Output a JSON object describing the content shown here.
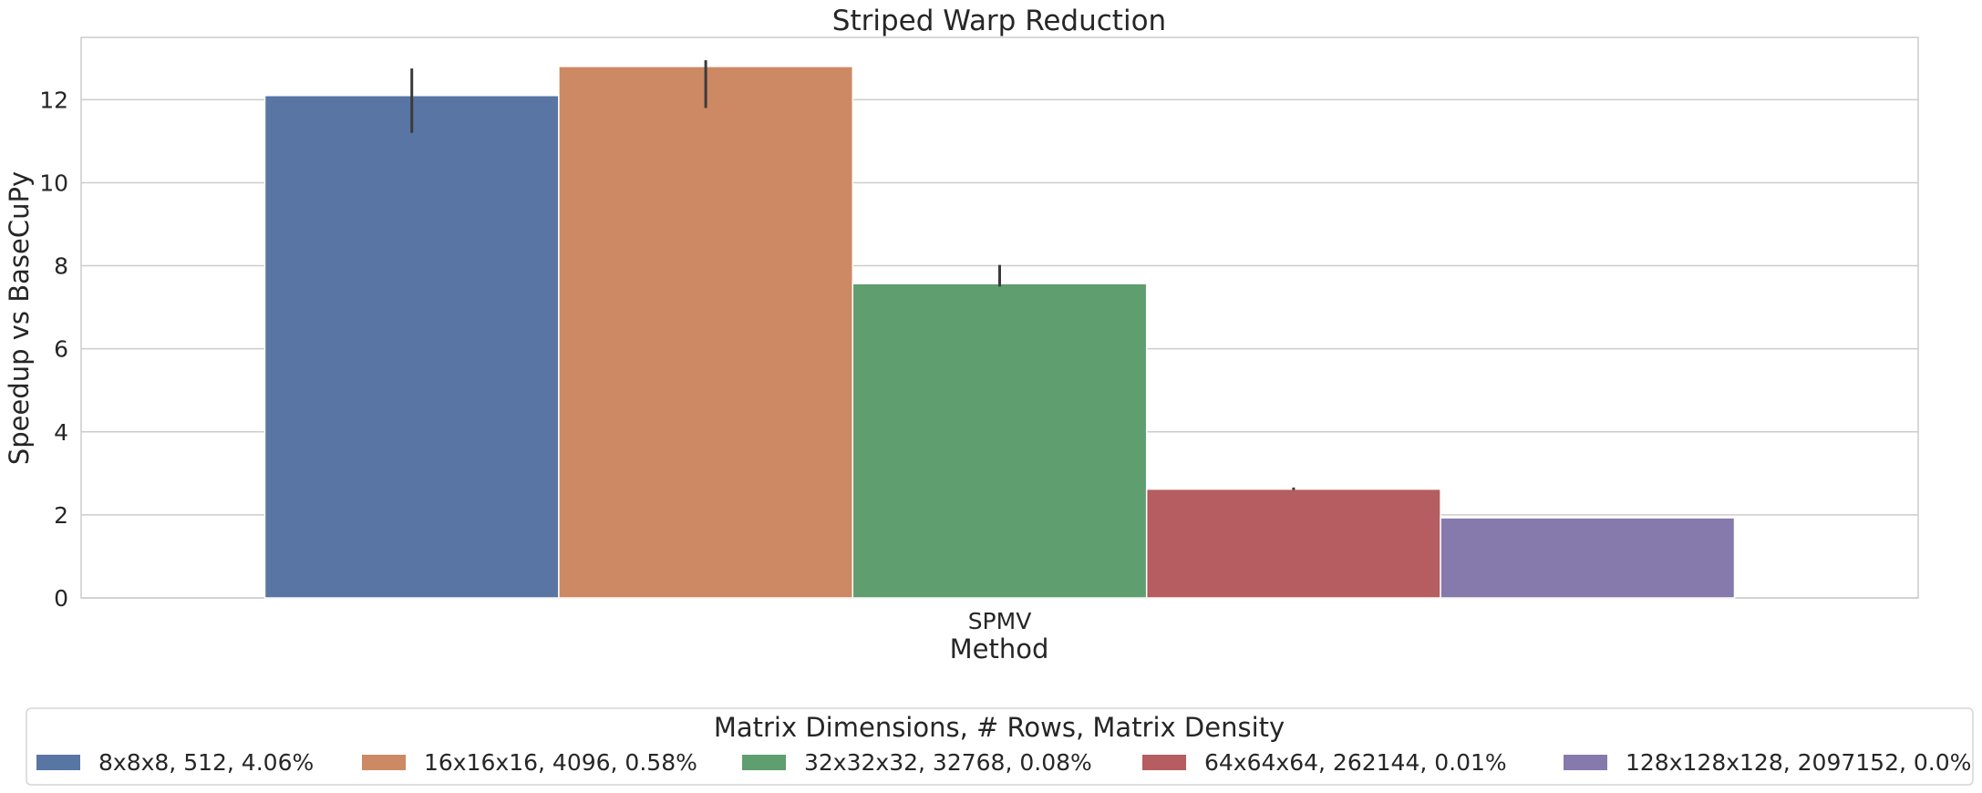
{
  "chart_data": {
    "type": "bar",
    "title": "Striped Warp Reduction",
    "xlabel": "Method",
    "ylabel": "Speedup vs BaseCuPy",
    "categories": [
      "SPMV"
    ],
    "ylim": [
      0,
      13.5
    ],
    "yticks": [
      0,
      2,
      4,
      6,
      8,
      10,
      12
    ],
    "grid": true,
    "legend": {
      "title": "Matrix Dimensions, # Rows, Matrix Density",
      "placement": "bottom-center"
    },
    "series": [
      {
        "name": "8x8x8, 512, 4.06%",
        "values": [
          12.1
        ],
        "error": [
          [
            11.2,
            12.75
          ]
        ],
        "color": "#5975a4"
      },
      {
        "name": "16x16x16, 4096, 0.58%",
        "values": [
          12.8
        ],
        "error": [
          [
            11.8,
            12.95
          ]
        ],
        "color": "#cc8963"
      },
      {
        "name": "32x32x32, 32768, 0.08%",
        "values": [
          7.57
        ],
        "error": [
          [
            7.5,
            8.02
          ]
        ],
        "color": "#5f9e6e"
      },
      {
        "name": "64x64x64, 262144, 0.01%",
        "values": [
          2.62
        ],
        "error": [
          [
            2.6,
            2.66
          ]
        ],
        "color": "#b55d60"
      },
      {
        "name": "128x128x128, 2097152, 0.0%",
        "values": [
          1.93
        ],
        "error": null,
        "color": "#857aab"
      }
    ]
  }
}
